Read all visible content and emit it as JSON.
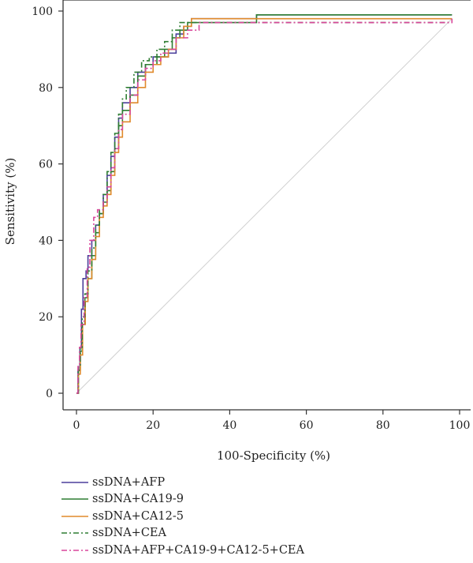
{
  "chart_data": {
    "type": "line",
    "xlabel": "100-Specificity (%)",
    "ylabel": "Sensitivity (%)",
    "xlim": [
      0,
      100
    ],
    "ylim": [
      0,
      100
    ],
    "x_ticks": [
      0,
      20,
      40,
      60,
      80,
      100
    ],
    "y_ticks": [
      0,
      20,
      40,
      60,
      80,
      100
    ],
    "grid": false,
    "legend_position": "bottom",
    "reference_line": {
      "from": [
        0,
        0
      ],
      "to": [
        98,
        98
      ],
      "color": "#d0d0d0"
    },
    "series": [
      {
        "name": "ssDNA+AFP",
        "color": "#4b3f9b",
        "dash": "",
        "points": [
          [
            0,
            0
          ],
          [
            0.4,
            6
          ],
          [
            0.9,
            12
          ],
          [
            1.3,
            22
          ],
          [
            1.7,
            30
          ],
          [
            2.5,
            32
          ],
          [
            3,
            36
          ],
          [
            4,
            40
          ],
          [
            5,
            44
          ],
          [
            6,
            47
          ],
          [
            7,
            52
          ],
          [
            8,
            57
          ],
          [
            9,
            62
          ],
          [
            10,
            67
          ],
          [
            11,
            72
          ],
          [
            12,
            76
          ],
          [
            14,
            80
          ],
          [
            16,
            84
          ],
          [
            18,
            86
          ],
          [
            20,
            88
          ],
          [
            24,
            89
          ],
          [
            26,
            94
          ],
          [
            28,
            96
          ],
          [
            30,
            98
          ],
          [
            45,
            98
          ],
          [
            47,
            99
          ],
          [
            98,
            99
          ]
        ]
      },
      {
        "name": "ssDNA+CA19-9",
        "color": "#2e7d32",
        "dash": "",
        "points": [
          [
            0,
            0
          ],
          [
            0.5,
            6
          ],
          [
            1,
            11
          ],
          [
            1.5,
            18
          ],
          [
            2.2,
            25
          ],
          [
            3,
            30
          ],
          [
            4,
            36
          ],
          [
            5,
            42
          ],
          [
            6,
            47
          ],
          [
            7,
            50
          ],
          [
            8,
            53
          ],
          [
            9,
            58
          ],
          [
            10,
            64
          ],
          [
            11,
            70
          ],
          [
            12,
            74
          ],
          [
            14,
            78
          ],
          [
            16,
            83
          ],
          [
            18,
            86
          ],
          [
            21,
            88
          ],
          [
            23,
            90
          ],
          [
            25,
            93
          ],
          [
            27,
            95
          ],
          [
            29,
            97
          ],
          [
            46,
            97
          ],
          [
            47,
            99
          ],
          [
            98,
            99
          ]
        ]
      },
      {
        "name": "ssDNA+CA12-5",
        "color": "#e08a2c",
        "dash": "",
        "points": [
          [
            0,
            0
          ],
          [
            0.5,
            5
          ],
          [
            1,
            10
          ],
          [
            1.6,
            18
          ],
          [
            2.3,
            24
          ],
          [
            3,
            30
          ],
          [
            4,
            35
          ],
          [
            5,
            41
          ],
          [
            6,
            46
          ],
          [
            7,
            49
          ],
          [
            8,
            52
          ],
          [
            9,
            57
          ],
          [
            10,
            63
          ],
          [
            11,
            67
          ],
          [
            12,
            71
          ],
          [
            14,
            76
          ],
          [
            16,
            80
          ],
          [
            18,
            84
          ],
          [
            20,
            86
          ],
          [
            22,
            88
          ],
          [
            24,
            90
          ],
          [
            26,
            93
          ],
          [
            28,
            96
          ],
          [
            30,
            98
          ],
          [
            98,
            98
          ]
        ]
      },
      {
        "name": "ssDNA+CEA",
        "color": "#2e7d32",
        "dash": "7 3 2 3",
        "points": [
          [
            0,
            0
          ],
          [
            0.5,
            7
          ],
          [
            1,
            12
          ],
          [
            1.5,
            20
          ],
          [
            2.2,
            26
          ],
          [
            3,
            32
          ],
          [
            4,
            38
          ],
          [
            5,
            44
          ],
          [
            6,
            48
          ],
          [
            7,
            52
          ],
          [
            8,
            58
          ],
          [
            9,
            63
          ],
          [
            10,
            68
          ],
          [
            11,
            73
          ],
          [
            12,
            77
          ],
          [
            13,
            80
          ],
          [
            15,
            84
          ],
          [
            17,
            87
          ],
          [
            19,
            88
          ],
          [
            21,
            90
          ],
          [
            23,
            92
          ],
          [
            25,
            95
          ],
          [
            27,
            97
          ],
          [
            98,
            97
          ]
        ]
      },
      {
        "name": "ssDNA+AFP+CA19-9+CA12-5+CEA",
        "color": "#d9479b",
        "dash": "7 3 2 3",
        "points": [
          [
            0,
            0
          ],
          [
            0.4,
            7
          ],
          [
            0.8,
            12
          ],
          [
            1.2,
            18
          ],
          [
            2,
            25
          ],
          [
            2.8,
            33
          ],
          [
            3.5,
            40
          ],
          [
            4.5,
            46
          ],
          [
            5.5,
            48
          ],
          [
            7,
            50
          ],
          [
            8,
            54
          ],
          [
            9,
            59
          ],
          [
            10,
            64
          ],
          [
            11,
            69
          ],
          [
            12,
            73
          ],
          [
            14,
            78
          ],
          [
            16,
            82
          ],
          [
            18,
            85
          ],
          [
            20,
            87
          ],
          [
            22,
            89
          ],
          [
            24,
            90
          ],
          [
            26,
            93
          ],
          [
            29,
            95
          ],
          [
            32,
            97
          ],
          [
            98,
            98
          ]
        ]
      }
    ]
  }
}
